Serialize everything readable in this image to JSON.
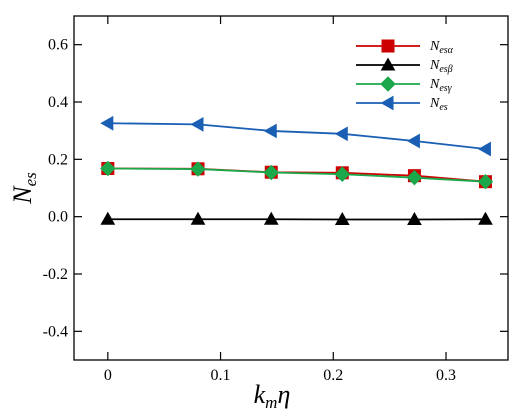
{
  "chart_data": {
    "type": "line",
    "x": [
      0,
      0.08,
      0.145,
      0.208,
      0.272,
      0.335
    ],
    "series": [
      {
        "name": "N",
        "sub": "esα",
        "color": "#cc0000",
        "marker": "square",
        "values": [
          0.168,
          0.167,
          0.155,
          0.153,
          0.143,
          0.122
        ]
      },
      {
        "name": "N",
        "sub": "esβ",
        "color": "#000000",
        "marker": "triangle-up",
        "values": [
          -0.009,
          -0.009,
          -0.009,
          -0.01,
          -0.01,
          -0.009
        ]
      },
      {
        "name": "N",
        "sub": "esγ",
        "color": "#1aa84a",
        "marker": "diamond",
        "values": [
          0.168,
          0.166,
          0.154,
          0.148,
          0.136,
          0.122
        ]
      },
      {
        "name": "N",
        "sub": "es",
        "color": "#1a5fb4",
        "marker": "triangle-left",
        "values": [
          0.326,
          0.322,
          0.299,
          0.289,
          0.264,
          0.236
        ]
      }
    ],
    "xlim": [
      -0.03,
      0.355
    ],
    "ylim": [
      -0.5,
      0.7
    ],
    "xticks": [
      0,
      0.1,
      0.2,
      0.3
    ],
    "xtick_labels": [
      "0",
      "0.1",
      "0.2",
      "0.3"
    ],
    "yticks": [
      -0.4,
      -0.2,
      0.0,
      0.2,
      0.4,
      0.6
    ],
    "ytick_labels": [
      "-0.4",
      "-0.2",
      "0.0",
      "0.2",
      "0.4",
      "0.6"
    ],
    "xlabel": {
      "main": "k",
      "sub": "m",
      "tail": "η"
    },
    "ylabel": {
      "main": "N",
      "sub": "es"
    },
    "legend_position": "top-right",
    "grid": false
  }
}
